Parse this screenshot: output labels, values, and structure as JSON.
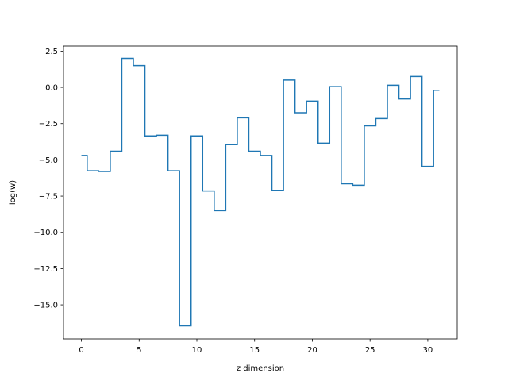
{
  "chart_data": {
    "type": "line",
    "drawstyle": "steps-mid",
    "title": "",
    "xlabel": "z dimension",
    "ylabel": "log(w)",
    "xlim": [
      -1.55,
      32.55
    ],
    "ylim": [
      -17.35,
      2.85
    ],
    "xticks": [
      0,
      5,
      10,
      15,
      20,
      25,
      30
    ],
    "xtick_labels": [
      "0",
      "5",
      "10",
      "15",
      "20",
      "25",
      "30"
    ],
    "yticks": [
      2.5,
      0.0,
      -2.5,
      -5.0,
      -7.5,
      -10.0,
      -12.5,
      -15.0
    ],
    "ytick_labels": [
      "2.5",
      "0.0",
      "−2.5",
      "−5.0",
      "−7.5",
      "−10.0",
      "−12.5",
      "−15.0"
    ],
    "grid": false,
    "series": [
      {
        "color": "#1f77b4",
        "x": [
          0,
          1,
          2,
          3,
          4,
          5,
          6,
          7,
          8,
          9,
          10,
          11,
          12,
          13,
          14,
          15,
          16,
          17,
          18,
          19,
          20,
          21,
          22,
          23,
          24,
          25,
          26,
          27,
          28,
          29,
          30,
          31
        ],
        "y": [
          -4.7,
          -5.75,
          -5.8,
          -4.4,
          2.0,
          1.5,
          -3.35,
          -3.3,
          -5.75,
          -16.45,
          -3.35,
          -7.15,
          -8.5,
          -3.95,
          -2.1,
          -4.4,
          -4.7,
          -7.1,
          0.5,
          -1.75,
          -0.95,
          -3.85,
          0.05,
          -6.65,
          -6.75,
          -2.65,
          -2.15,
          0.15,
          -0.8,
          0.75,
          -5.45,
          -0.2
        ]
      }
    ]
  }
}
